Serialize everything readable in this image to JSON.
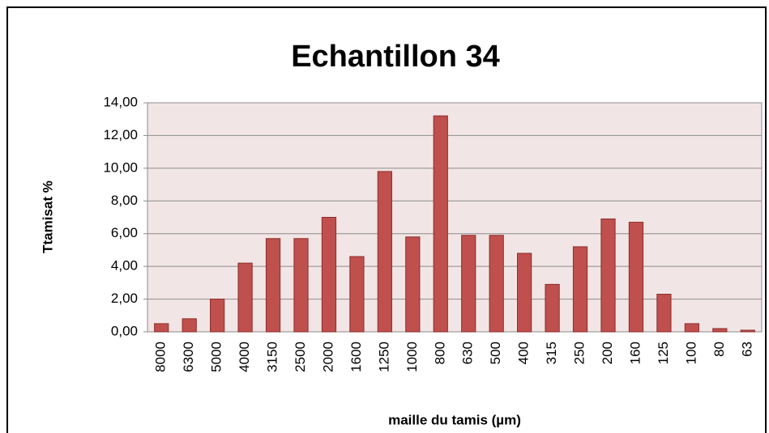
{
  "chart_data": {
    "type": "bar",
    "title": "Echantillon 34",
    "xlabel": "maille du tamis (µm)",
    "ylabel": "Ttamisat %",
    "categories": [
      "8000",
      "6300",
      "5000",
      "4000",
      "3150",
      "2500",
      "2000",
      "1600",
      "1250",
      "1000",
      "800",
      "630",
      "500",
      "400",
      "315",
      "250",
      "200",
      "160",
      "125",
      "100",
      "80",
      "63"
    ],
    "values": [
      0.5,
      0.8,
      2.0,
      4.2,
      5.7,
      5.7,
      7.0,
      4.6,
      9.8,
      5.8,
      13.2,
      5.9,
      5.9,
      4.8,
      2.9,
      5.2,
      6.9,
      6.7,
      2.3,
      0.5,
      0.2,
      0.1
    ],
    "color": "#c0504d",
    "ylim": [
      0,
      14
    ],
    "yticks": [
      {
        "value": 0,
        "label": "0,00"
      },
      {
        "value": 2,
        "label": "2,00"
      },
      {
        "value": 4,
        "label": "4,00"
      },
      {
        "value": 6,
        "label": "6,00"
      },
      {
        "value": 8,
        "label": "8,00"
      },
      {
        "value": 10,
        "label": "10,00"
      },
      {
        "value": 12,
        "label": "12,00"
      },
      {
        "value": 14,
        "label": "14,00"
      }
    ],
    "grid": true
  }
}
